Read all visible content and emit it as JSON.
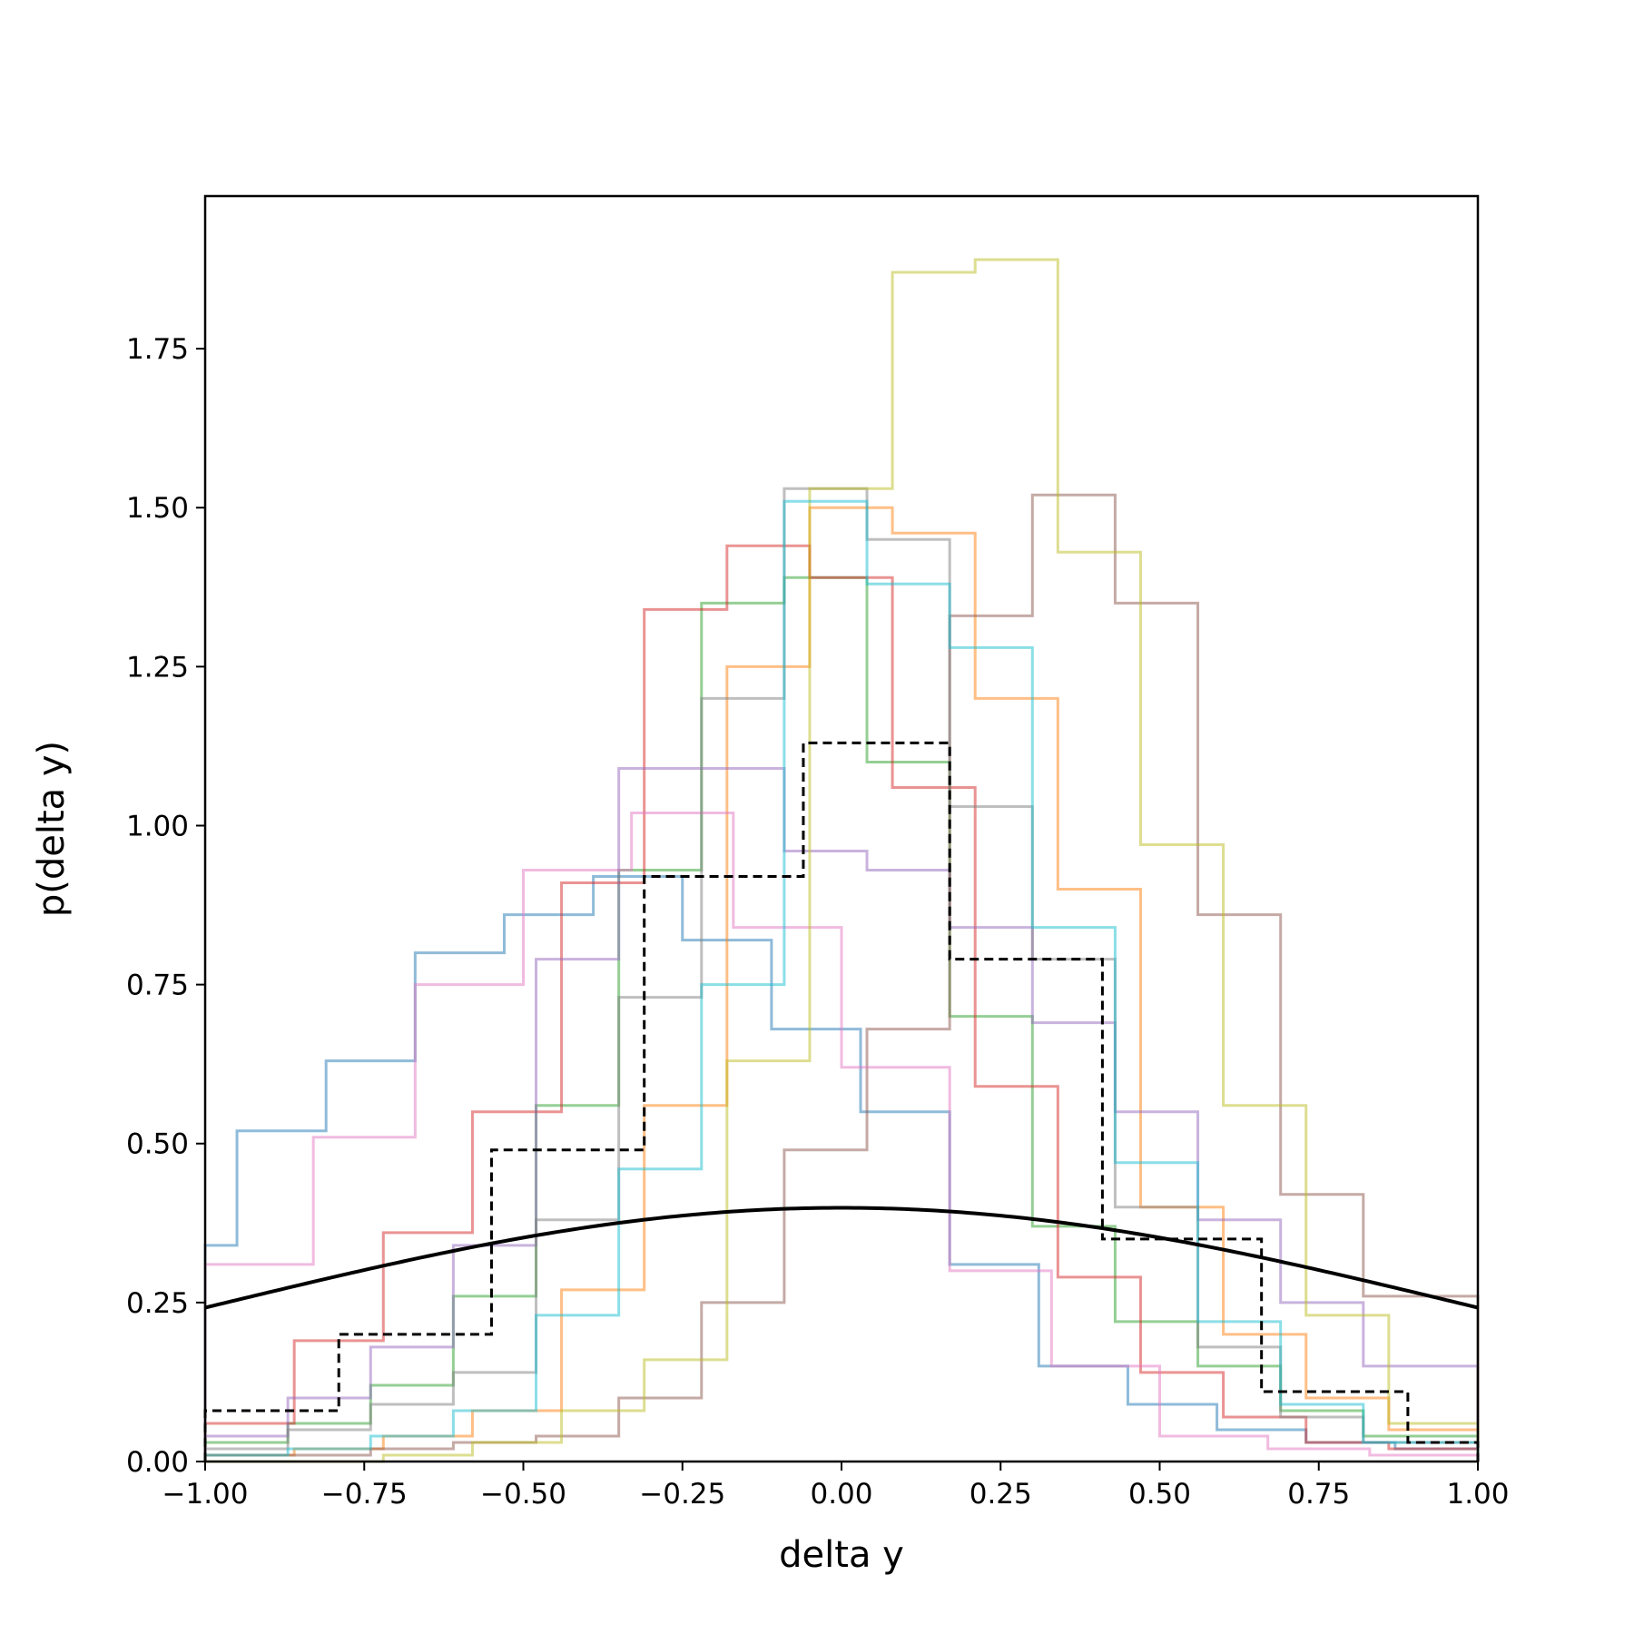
{
  "chart_data": {
    "type": "histogram-step",
    "title": "",
    "xlabel": "delta y",
    "ylabel": "p(delta y)",
    "xlim": [
      -1.0,
      1.0
    ],
    "ylim": [
      0.0,
      1.99
    ],
    "x_ticks": [
      "−1.00",
      "−0.75",
      "−0.50",
      "−0.25",
      "0.00",
      "0.25",
      "0.50",
      "0.75",
      "1.00"
    ],
    "y_ticks": [
      "0.00",
      "0.25",
      "0.50",
      "0.75",
      "1.00",
      "1.25",
      "1.50",
      "1.75"
    ],
    "x_tick_values": [
      -1.0,
      -0.75,
      -0.5,
      -0.25,
      0.0,
      0.25,
      0.5,
      0.75,
      1.0
    ],
    "y_tick_values": [
      0.0,
      0.25,
      0.5,
      0.75,
      1.0,
      1.25,
      1.5,
      1.75
    ],
    "grid": false,
    "legend": "none",
    "series": [
      {
        "color": "#1f77b4",
        "edges": [
          -1.0,
          -0.95,
          -0.81,
          -0.67,
          -0.53,
          -0.39,
          -0.25,
          -0.11,
          0.03,
          0.17,
          0.31,
          0.45,
          0.59,
          0.73,
          0.87,
          1.0
        ],
        "values": [
          0.34,
          0.52,
          0.63,
          0.8,
          0.86,
          0.92,
          0.82,
          0.68,
          0.55,
          0.31,
          0.15,
          0.09,
          0.05,
          0.03,
          0.02
        ]
      },
      {
        "color": "#ff7f0e",
        "edges": [
          -1.0,
          -0.86,
          -0.72,
          -0.58,
          -0.44,
          -0.31,
          -0.18,
          -0.05,
          0.08,
          0.21,
          0.34,
          0.47,
          0.6,
          0.73,
          0.86,
          1.0
        ],
        "values": [
          0.01,
          0.02,
          0.04,
          0.08,
          0.27,
          0.56,
          1.25,
          1.5,
          1.46,
          1.2,
          0.9,
          0.4,
          0.2,
          0.1,
          0.05
        ]
      },
      {
        "color": "#2ca02c",
        "edges": [
          -1.0,
          -0.87,
          -0.74,
          -0.61,
          -0.48,
          -0.35,
          -0.22,
          -0.09,
          0.04,
          0.17,
          0.3,
          0.43,
          0.56,
          0.69,
          0.82,
          1.0
        ],
        "values": [
          0.03,
          0.06,
          0.12,
          0.26,
          0.56,
          0.93,
          1.35,
          1.39,
          1.1,
          0.7,
          0.37,
          0.22,
          0.15,
          0.08,
          0.04
        ]
      },
      {
        "color": "#d62728",
        "edges": [
          -1.0,
          -0.86,
          -0.72,
          -0.58,
          -0.44,
          -0.31,
          -0.18,
          -0.05,
          0.08,
          0.21,
          0.34,
          0.47,
          0.6,
          0.73,
          0.86,
          1.0
        ],
        "values": [
          0.06,
          0.19,
          0.36,
          0.55,
          0.91,
          1.34,
          1.44,
          1.39,
          1.06,
          0.59,
          0.29,
          0.14,
          0.07,
          0.03,
          0.02
        ]
      },
      {
        "color": "#9467bd",
        "edges": [
          -1.0,
          -0.87,
          -0.74,
          -0.61,
          -0.48,
          -0.35,
          -0.22,
          -0.09,
          0.04,
          0.17,
          0.3,
          0.43,
          0.56,
          0.69,
          0.82,
          1.0
        ],
        "values": [
          0.04,
          0.1,
          0.18,
          0.34,
          0.79,
          1.09,
          1.09,
          0.96,
          0.93,
          0.84,
          0.69,
          0.55,
          0.38,
          0.25,
          0.15
        ]
      },
      {
        "color": "#8c564b",
        "edges": [
          -1.0,
          -0.87,
          -0.74,
          -0.61,
          -0.48,
          -0.35,
          -0.22,
          -0.09,
          0.04,
          0.17,
          0.3,
          0.43,
          0.56,
          0.69,
          0.82,
          1.0
        ],
        "values": [
          0.01,
          0.01,
          0.02,
          0.03,
          0.04,
          0.1,
          0.25,
          0.49,
          0.68,
          1.33,
          1.52,
          1.35,
          0.86,
          0.42,
          0.26
        ]
      },
      {
        "color": "#e377c2",
        "edges": [
          -1.0,
          -0.83,
          -0.67,
          -0.5,
          -0.33,
          -0.17,
          0.0,
          0.17,
          0.33,
          0.5,
          0.67,
          0.83,
          1.0
        ],
        "values": [
          0.31,
          0.51,
          0.75,
          0.93,
          1.02,
          0.84,
          0.62,
          0.3,
          0.15,
          0.04,
          0.02,
          0.01
        ]
      },
      {
        "color": "#7f7f7f",
        "edges": [
          -1.0,
          -0.87,
          -0.74,
          -0.61,
          -0.48,
          -0.35,
          -0.22,
          -0.09,
          0.04,
          0.17,
          0.3,
          0.43,
          0.56,
          0.69,
          0.82,
          1.0
        ],
        "values": [
          0.02,
          0.05,
          0.09,
          0.14,
          0.38,
          0.73,
          1.2,
          1.53,
          1.45,
          1.03,
          0.79,
          0.4,
          0.18,
          0.07,
          0.03
        ]
      },
      {
        "color": "#bcbd22",
        "edges": [
          -1.0,
          -0.86,
          -0.72,
          -0.58,
          -0.44,
          -0.31,
          -0.18,
          -0.05,
          0.08,
          0.21,
          0.34,
          0.47,
          0.6,
          0.73,
          0.86,
          1.0
        ],
        "values": [
          0.0,
          0.0,
          0.01,
          0.03,
          0.08,
          0.16,
          0.63,
          1.53,
          1.87,
          1.89,
          1.43,
          0.97,
          0.56,
          0.23,
          0.06
        ]
      },
      {
        "color": "#17becf",
        "edges": [
          -1.0,
          -0.87,
          -0.74,
          -0.61,
          -0.48,
          -0.35,
          -0.22,
          -0.09,
          0.04,
          0.17,
          0.3,
          0.43,
          0.56,
          0.69,
          0.82,
          1.0
        ],
        "values": [
          0.01,
          0.02,
          0.04,
          0.08,
          0.23,
          0.46,
          0.75,
          1.51,
          1.38,
          1.28,
          0.84,
          0.47,
          0.22,
          0.09,
          0.03
        ]
      }
    ],
    "aggregate": {
      "color": "#000000",
      "style": "dashed",
      "edges": [
        -1.0,
        -0.79,
        -0.55,
        -0.31,
        -0.06,
        0.17,
        0.41,
        0.66,
        0.89,
        1.0
      ],
      "values": [
        0.08,
        0.2,
        0.49,
        0.92,
        1.13,
        0.79,
        0.35,
        0.11,
        0.03
      ]
    },
    "curve": {
      "type": "normal-pdf",
      "mean": 0.0,
      "sigma": 1.0,
      "color": "#000000"
    }
  }
}
